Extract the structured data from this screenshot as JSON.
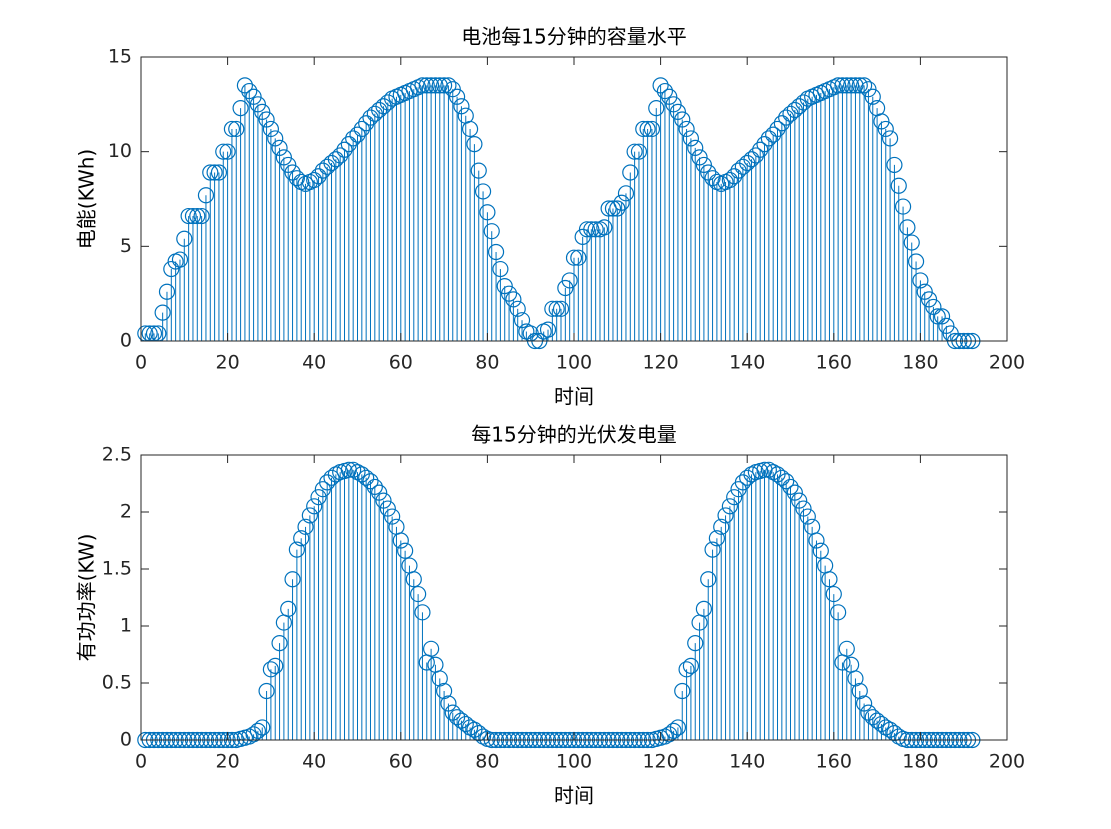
{
  "chart_data": [
    {
      "type": "stem",
      "title": "电池每15分钟的容量水平",
      "xlabel": "时间",
      "ylabel": "电能(KWh)",
      "color": "#0072BD",
      "xlim": [
        0,
        200
      ],
      "xticks": [
        0,
        20,
        40,
        60,
        80,
        100,
        120,
        140,
        160,
        180,
        200
      ],
      "ylim": [
        0,
        15
      ],
      "yticks": [
        0,
        5,
        10,
        15
      ],
      "x": [
        1,
        2,
        3,
        4,
        5,
        6,
        7,
        8,
        9,
        10,
        11,
        12,
        13,
        14,
        15,
        16,
        17,
        18,
        19,
        20,
        21,
        22,
        23,
        24,
        25,
        26,
        27,
        28,
        29,
        30,
        31,
        32,
        33,
        34,
        35,
        36,
        37,
        38,
        39,
        40,
        41,
        42,
        43,
        44,
        45,
        46,
        47,
        48,
        49,
        50,
        51,
        52,
        53,
        54,
        55,
        56,
        57,
        58,
        59,
        60,
        61,
        62,
        63,
        64,
        65,
        66,
        67,
        68,
        69,
        70,
        71,
        72,
        73,
        74,
        75,
        76,
        77,
        78,
        79,
        80,
        81,
        82,
        83,
        84,
        85,
        86,
        87,
        88,
        89,
        90,
        91,
        92,
        93,
        94,
        95,
        96,
        97,
        98,
        99,
        100,
        101,
        102,
        103,
        104,
        105,
        106,
        107,
        108,
        109,
        110,
        111,
        112,
        113,
        114,
        115,
        116,
        117,
        118,
        119,
        120,
        121,
        122,
        123,
        124,
        125,
        126,
        127,
        128,
        129,
        130,
        131,
        132,
        133,
        134,
        135,
        136,
        137,
        138,
        139,
        140,
        141,
        142,
        143,
        144,
        145,
        146,
        147,
        148,
        149,
        150,
        151,
        152,
        153,
        154,
        155,
        156,
        157,
        158,
        159,
        160,
        161,
        162,
        163,
        164,
        165,
        166,
        167,
        168,
        169,
        170,
        171,
        172,
        173,
        174,
        175,
        176,
        177,
        178,
        179,
        180,
        181,
        182,
        183,
        184,
        185,
        186,
        187,
        188,
        189,
        190,
        191,
        192
      ],
      "values": [
        0.4,
        0.4,
        0.4,
        0.4,
        1.5,
        2.6,
        3.8,
        4.2,
        4.3,
        5.4,
        6.6,
        6.6,
        6.6,
        6.6,
        7.7,
        8.9,
        8.9,
        8.9,
        10.0,
        10.0,
        11.2,
        11.2,
        12.3,
        13.5,
        13.2,
        12.9,
        12.5,
        12.1,
        11.7,
        11.2,
        10.7,
        10.2,
        9.7,
        9.3,
        8.9,
        8.6,
        8.4,
        8.3,
        8.4,
        8.5,
        8.7,
        9.0,
        9.2,
        9.4,
        9.6,
        9.8,
        10.1,
        10.4,
        10.7,
        10.9,
        11.2,
        11.5,
        11.8,
        12.0,
        12.2,
        12.4,
        12.6,
        12.8,
        12.9,
        13.0,
        13.1,
        13.2,
        13.3,
        13.4,
        13.5,
        13.5,
        13.5,
        13.5,
        13.5,
        13.5,
        13.5,
        13.3,
        12.9,
        12.4,
        11.9,
        11.2,
        10.4,
        9.0,
        7.9,
        6.8,
        5.8,
        4.7,
        3.8,
        2.9,
        2.5,
        2.2,
        1.7,
        1.1,
        0.5,
        0.4,
        0.0,
        0.0,
        0.5,
        0.6,
        1.7,
        1.7,
        1.7,
        2.8,
        3.2,
        4.4,
        4.4,
        5.5,
        5.9,
        5.9,
        5.9,
        5.9,
        6.0,
        7.0,
        7.0,
        7.0,
        7.3,
        7.8,
        8.9,
        10.0,
        10.0,
        11.2,
        11.2,
        11.2,
        12.3,
        13.5,
        13.2,
        12.9,
        12.5,
        12.1,
        11.7,
        11.2,
        10.7,
        10.2,
        9.7,
        9.3,
        8.9,
        8.6,
        8.4,
        8.3,
        8.4,
        8.5,
        8.7,
        9.0,
        9.2,
        9.4,
        9.6,
        9.8,
        10.1,
        10.4,
        10.7,
        10.9,
        11.2,
        11.5,
        11.8,
        12.0,
        12.2,
        12.4,
        12.6,
        12.8,
        12.9,
        13.0,
        13.1,
        13.2,
        13.3,
        13.4,
        13.5,
        13.5,
        13.5,
        13.5,
        13.5,
        13.5,
        13.5,
        13.3,
        12.9,
        12.3,
        11.6,
        11.2,
        10.7,
        9.3,
        8.2,
        7.1,
        6.0,
        5.2,
        4.2,
        3.2,
        2.6,
        2.2,
        1.8,
        1.3,
        1.3,
        0.8,
        0.4,
        0,
        0,
        0,
        0,
        0
      ]
    },
    {
      "type": "stem",
      "title": "每15分钟的光伏发电量",
      "xlabel": "时间",
      "ylabel": "有功功率(KW)",
      "color": "#0072BD",
      "xlim": [
        0,
        200
      ],
      "xticks": [
        0,
        20,
        40,
        60,
        80,
        100,
        120,
        140,
        160,
        180,
        200
      ],
      "ylim": [
        0,
        2.5
      ],
      "yticks": [
        0,
        0.5,
        1,
        1.5,
        2,
        2.5
      ],
      "x": [
        1,
        2,
        3,
        4,
        5,
        6,
        7,
        8,
        9,
        10,
        11,
        12,
        13,
        14,
        15,
        16,
        17,
        18,
        19,
        20,
        21,
        22,
        23,
        24,
        25,
        26,
        27,
        28,
        29,
        30,
        31,
        32,
        33,
        34,
        35,
        36,
        37,
        38,
        39,
        40,
        41,
        42,
        43,
        44,
        45,
        46,
        47,
        48,
        49,
        50,
        51,
        52,
        53,
        54,
        55,
        56,
        57,
        58,
        59,
        60,
        61,
        62,
        63,
        64,
        65,
        66,
        67,
        68,
        69,
        70,
        71,
        72,
        73,
        74,
        75,
        76,
        77,
        78,
        79,
        80,
        81,
        82,
        83,
        84,
        85,
        86,
        87,
        88,
        89,
        90,
        91,
        92,
        93,
        94,
        95,
        96,
        97,
        98,
        99,
        100,
        101,
        102,
        103,
        104,
        105,
        106,
        107,
        108,
        109,
        110,
        111,
        112,
        113,
        114,
        115,
        116,
        117,
        118,
        119,
        120,
        121,
        122,
        123,
        124,
        125,
        126,
        127,
        128,
        129,
        130,
        131,
        132,
        133,
        134,
        135,
        136,
        137,
        138,
        139,
        140,
        141,
        142,
        143,
        144,
        145,
        146,
        147,
        148,
        149,
        150,
        151,
        152,
        153,
        154,
        155,
        156,
        157,
        158,
        159,
        160,
        161,
        162,
        163,
        164,
        165,
        166,
        167,
        168,
        169,
        170,
        171,
        172,
        173,
        174,
        175,
        176,
        177,
        178,
        179,
        180,
        181,
        182,
        183,
        184,
        185,
        186,
        187,
        188,
        189,
        190,
        191,
        192
      ],
      "values": [
        0,
        0,
        0,
        0,
        0,
        0,
        0,
        0,
        0,
        0,
        0,
        0,
        0,
        0,
        0,
        0,
        0,
        0,
        0,
        0,
        0,
        0,
        0.01,
        0.02,
        0.03,
        0.05,
        0.08,
        0.11,
        0.43,
        0.62,
        0.65,
        0.85,
        1.03,
        1.15,
        1.41,
        1.67,
        1.77,
        1.87,
        1.97,
        2.05,
        2.13,
        2.2,
        2.26,
        2.3,
        2.33,
        2.35,
        2.36,
        2.37,
        2.37,
        2.35,
        2.33,
        2.3,
        2.27,
        2.22,
        2.17,
        2.1,
        2.03,
        1.96,
        1.87,
        1.75,
        1.66,
        1.53,
        1.41,
        1.28,
        1.12,
        0.68,
        0.8,
        0.66,
        0.54,
        0.43,
        0.32,
        0.24,
        0.2,
        0.17,
        0.14,
        0.11,
        0.09,
        0.06,
        0.03,
        0.01,
        0,
        0,
        0,
        0,
        0,
        0,
        0,
        0,
        0,
        0,
        0,
        0,
        0,
        0,
        0,
        0,
        0,
        0,
        0,
        0,
        0,
        0,
        0,
        0,
        0,
        0,
        0,
        0,
        0,
        0,
        0,
        0,
        0,
        0,
        0,
        0,
        0,
        0,
        0.01,
        0.02,
        0.03,
        0.05,
        0.08,
        0.11,
        0.43,
        0.62,
        0.65,
        0.85,
        1.03,
        1.15,
        1.41,
        1.67,
        1.77,
        1.87,
        1.97,
        2.05,
        2.13,
        2.2,
        2.26,
        2.3,
        2.33,
        2.35,
        2.36,
        2.37,
        2.37,
        2.35,
        2.33,
        2.3,
        2.27,
        2.22,
        2.17,
        2.1,
        2.03,
        1.96,
        1.87,
        1.75,
        1.66,
        1.53,
        1.41,
        1.28,
        1.12,
        0.68,
        0.8,
        0.66,
        0.54,
        0.43,
        0.32,
        0.24,
        0.2,
        0.17,
        0.14,
        0.11,
        0.09,
        0.06,
        0.03,
        0.01,
        0,
        0,
        0,
        0,
        0,
        0,
        0,
        0,
        0,
        0,
        0,
        0,
        0,
        0,
        0,
        0
      ]
    }
  ]
}
